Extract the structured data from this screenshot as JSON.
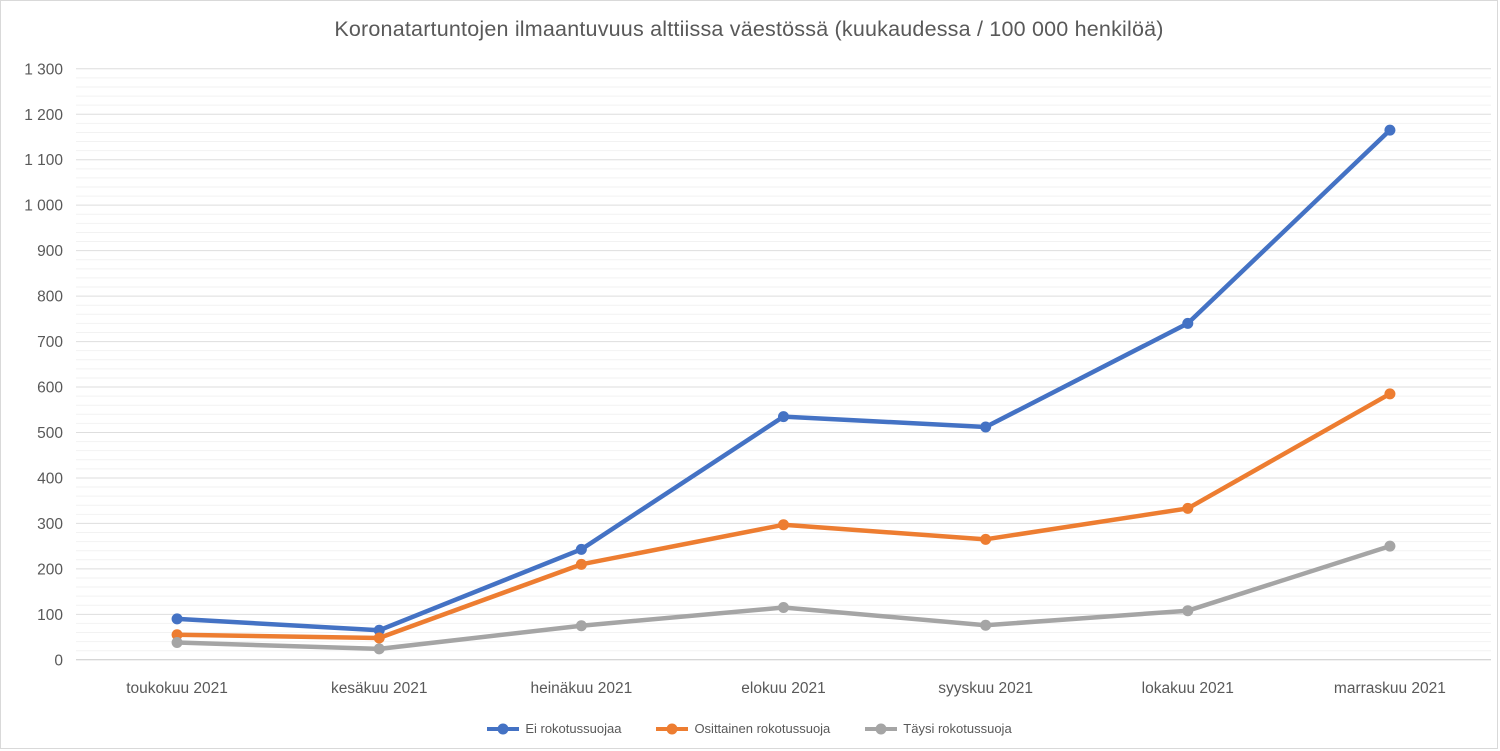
{
  "chart_data": {
    "type": "line",
    "title": "Koronatartuntojen ilmaantuvuus alttiissa väestössä (kuukaudessa / 100 000 henkilöä)",
    "categories": [
      "toukokuu 2021",
      "kesäkuu 2021",
      "heinäkuu 2021",
      "elokuu 2021",
      "syyskuu 2021",
      "lokakuu 2021",
      "marraskuu 2021"
    ],
    "series": [
      {
        "name": "Ei rokotussuojaa",
        "color": "#4472C4",
        "values": [
          90,
          65,
          243,
          535,
          512,
          740,
          1165
        ]
      },
      {
        "name": "Osittainen rokotussuoja",
        "color": "#ED7D31",
        "values": [
          55,
          48,
          210,
          297,
          265,
          333,
          585
        ]
      },
      {
        "name": "Täysi rokotussuoja",
        "color": "#A5A5A5",
        "values": [
          38,
          24,
          75,
          115,
          76,
          108,
          250
        ]
      }
    ],
    "xlabel": "",
    "ylabel": "",
    "ylim": [
      0,
      1300
    ],
    "y_major_step": 100,
    "y_minor_step": 20,
    "y_tick_labels": [
      "0",
      "100",
      "200",
      "300",
      "400",
      "500",
      "600",
      "700",
      "800",
      "900",
      "1 000",
      "1 100",
      "1 200",
      "1 300"
    ],
    "grid": true,
    "legend_position": "bottom",
    "colors": {
      "major_gridline": "#dedede",
      "minor_gridline": "#f2f2f2",
      "axis_line": "#c8c8c8",
      "text": "#595959"
    }
  }
}
